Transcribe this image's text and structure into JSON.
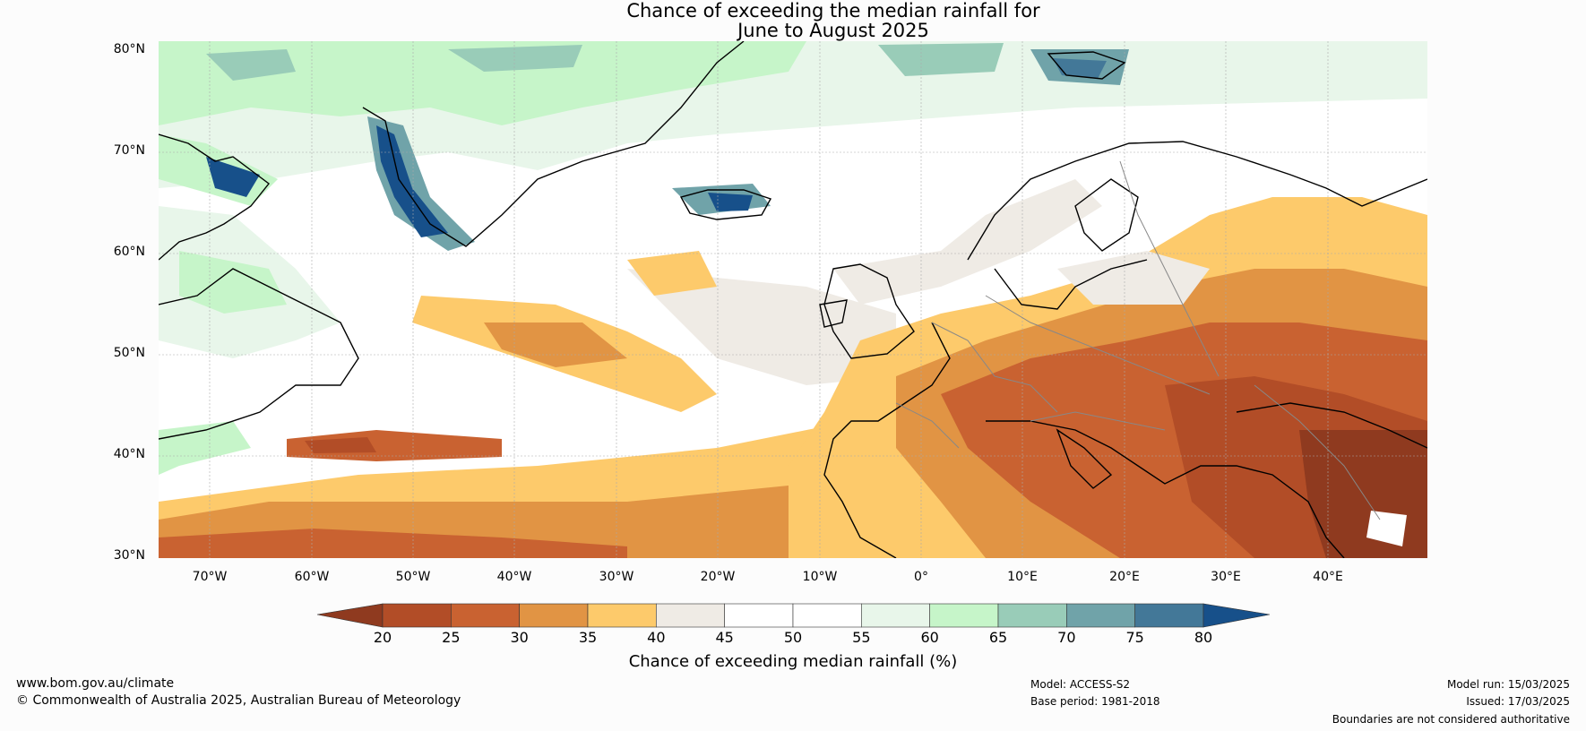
{
  "title": {
    "line1": "Chance of exceeding the median rainfall for",
    "line2": "June to August 2025"
  },
  "map": {
    "lat_labels": [
      "80°N",
      "70°N",
      "60°N",
      "50°N",
      "40°N",
      "30°N"
    ],
    "lon_labels": [
      "70°W",
      "60°W",
      "50°W",
      "40°W",
      "30°W",
      "20°W",
      "10°W",
      "0°",
      "10°E",
      "20°E",
      "30°E",
      "40°E"
    ]
  },
  "colorbar": {
    "label": "Chance of exceeding median rainfall (%)",
    "ticks": [
      "20",
      "25",
      "30",
      "35",
      "40",
      "45",
      "50",
      "55",
      "60",
      "65",
      "70",
      "75",
      "80"
    ],
    "colors": [
      "#8f3a1f",
      "#b24d27",
      "#c96231",
      "#e19444",
      "#fdca6b",
      "#efebe5",
      "#ffffff",
      "#ffffff",
      "#e8f6ea",
      "#c6f5c9",
      "#99ccb8",
      "#70a3a9",
      "#437898",
      "#17508a"
    ]
  },
  "footer": {
    "website": "www.bom.gov.au/climate",
    "copyright": "© Commonwealth of Australia 2025, Australian Bureau of Meteorology",
    "model": "Model: ACCESS-S2",
    "base_period": "Base period: 1981-2018",
    "model_run": "Model run: 15/03/2025",
    "issued": "Issued: 17/03/2025",
    "disclaimer": "Boundaries are not considered authoritative"
  }
}
